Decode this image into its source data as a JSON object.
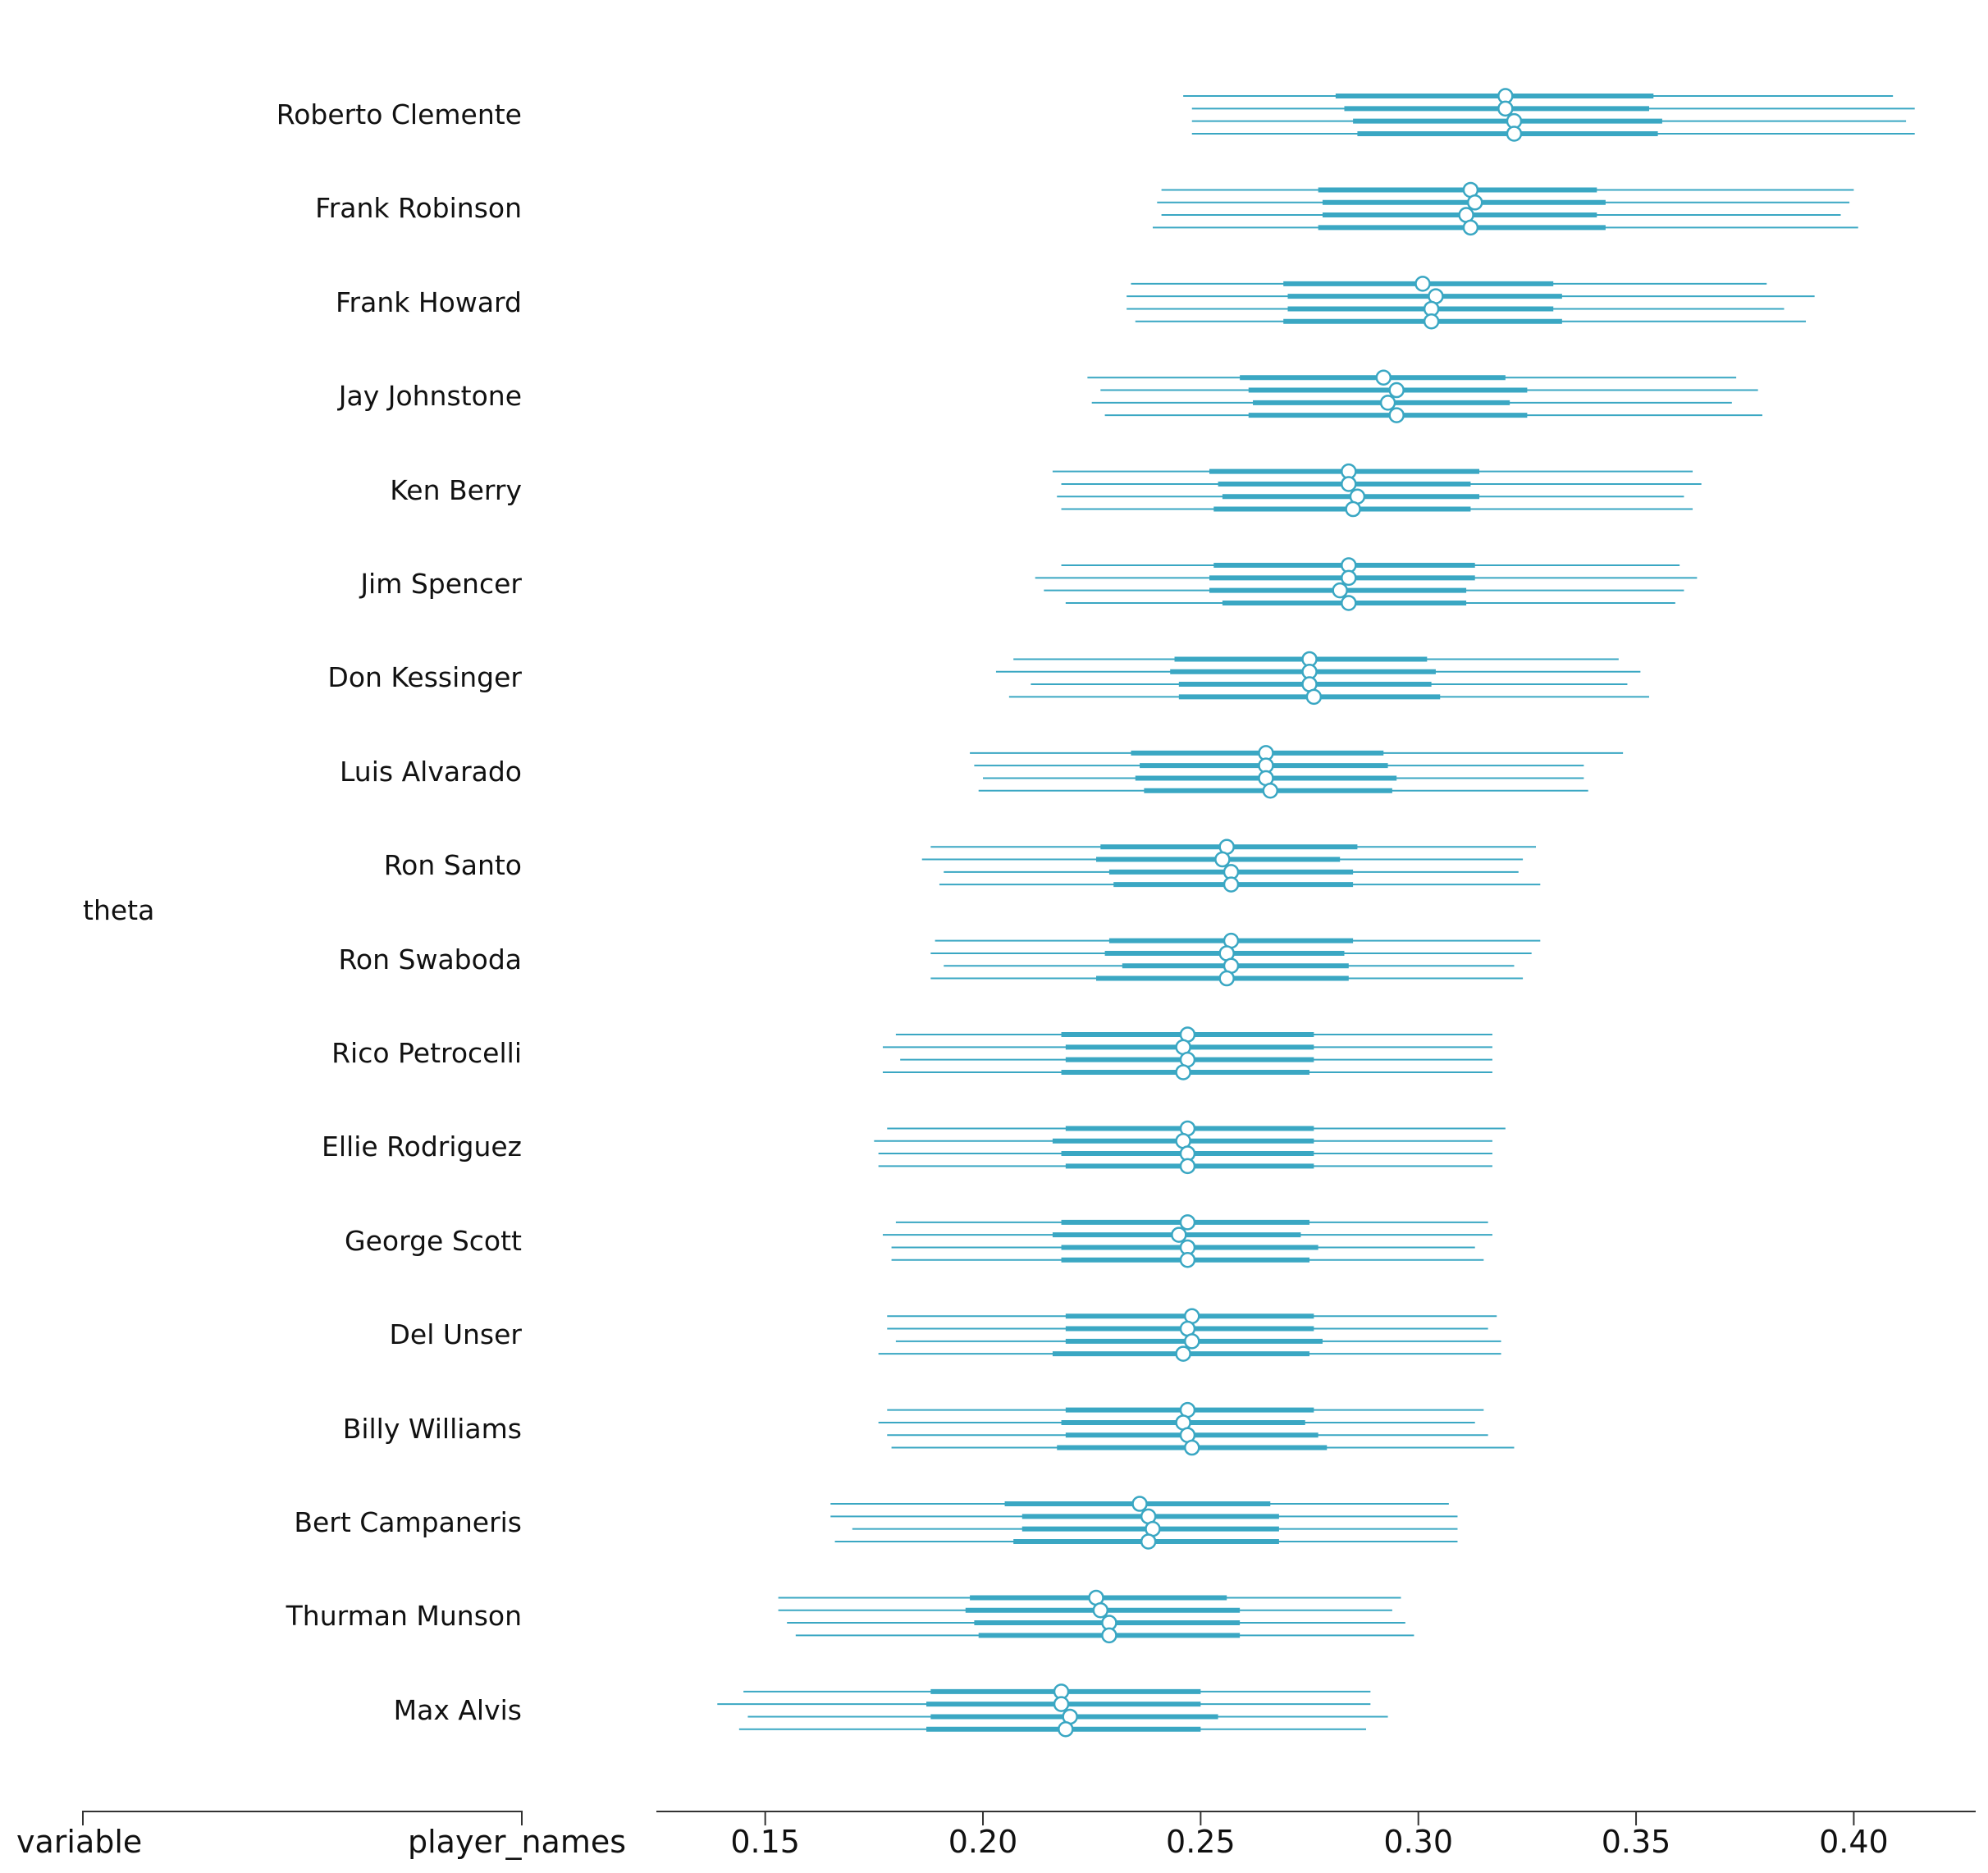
{
  "chart_data": {
    "type": "forest",
    "xlim": [
      0.125,
      0.428
    ],
    "xticks": [
      0.15,
      0.2,
      0.25,
      0.3,
      0.35,
      0.4
    ],
    "xtick_labels": [
      "0.15",
      "0.20",
      "0.25",
      "0.30",
      "0.35",
      "0.40"
    ],
    "left_axis": {
      "labels": [
        "variable",
        "player_names"
      ]
    },
    "variable_name": "theta",
    "colors": {
      "line": "#3aa7c3",
      "marker_fill": "#ffffff",
      "axis": "#333333"
    },
    "rows": [
      {
        "name": "Roberto Clemente",
        "chains": [
          {
            "hdi": [
              0.246,
              0.409
            ],
            "iqr": [
              0.281,
              0.354
            ],
            "center": 0.32
          },
          {
            "hdi": [
              0.248,
              0.414
            ],
            "iqr": [
              0.283,
              0.353
            ],
            "center": 0.32
          },
          {
            "hdi": [
              0.248,
              0.412
            ],
            "iqr": [
              0.285,
              0.356
            ],
            "center": 0.322
          },
          {
            "hdi": [
              0.248,
              0.414
            ],
            "iqr": [
              0.286,
              0.355
            ],
            "center": 0.322
          }
        ]
      },
      {
        "name": "Frank Robinson",
        "chains": [
          {
            "hdi": [
              0.241,
              0.4
            ],
            "iqr": [
              0.277,
              0.341
            ],
            "center": 0.312
          },
          {
            "hdi": [
              0.24,
              0.399
            ],
            "iqr": [
              0.278,
              0.343
            ],
            "center": 0.313
          },
          {
            "hdi": [
              0.241,
              0.397
            ],
            "iqr": [
              0.278,
              0.341
            ],
            "center": 0.311
          },
          {
            "hdi": [
              0.239,
              0.401
            ],
            "iqr": [
              0.277,
              0.343
            ],
            "center": 0.312
          }
        ]
      },
      {
        "name": "Frank Howard",
        "chains": [
          {
            "hdi": [
              0.234,
              0.38
            ],
            "iqr": [
              0.269,
              0.331
            ],
            "center": 0.301
          },
          {
            "hdi": [
              0.233,
              0.391
            ],
            "iqr": [
              0.27,
              0.333
            ],
            "center": 0.304
          },
          {
            "hdi": [
              0.233,
              0.384
            ],
            "iqr": [
              0.27,
              0.331
            ],
            "center": 0.303
          },
          {
            "hdi": [
              0.235,
              0.389
            ],
            "iqr": [
              0.269,
              0.333
            ],
            "center": 0.303
          }
        ]
      },
      {
        "name": "Jay Johnstone",
        "chains": [
          {
            "hdi": [
              0.224,
              0.373
            ],
            "iqr": [
              0.259,
              0.32
            ],
            "center": 0.292
          },
          {
            "hdi": [
              0.227,
              0.378
            ],
            "iqr": [
              0.261,
              0.325
            ],
            "center": 0.295
          },
          {
            "hdi": [
              0.225,
              0.372
            ],
            "iqr": [
              0.262,
              0.321
            ],
            "center": 0.293
          },
          {
            "hdi": [
              0.228,
              0.379
            ],
            "iqr": [
              0.261,
              0.325
            ],
            "center": 0.295
          }
        ]
      },
      {
        "name": "Ken Berry",
        "chains": [
          {
            "hdi": [
              0.216,
              0.363
            ],
            "iqr": [
              0.252,
              0.314
            ],
            "center": 0.284
          },
          {
            "hdi": [
              0.218,
              0.365
            ],
            "iqr": [
              0.254,
              0.312
            ],
            "center": 0.284
          },
          {
            "hdi": [
              0.217,
              0.361
            ],
            "iqr": [
              0.255,
              0.314
            ],
            "center": 0.286
          },
          {
            "hdi": [
              0.218,
              0.363
            ],
            "iqr": [
              0.253,
              0.312
            ],
            "center": 0.285
          }
        ]
      },
      {
        "name": "Jim Spencer",
        "chains": [
          {
            "hdi": [
              0.218,
              0.36
            ],
            "iqr": [
              0.253,
              0.313
            ],
            "center": 0.284
          },
          {
            "hdi": [
              0.212,
              0.364
            ],
            "iqr": [
              0.252,
              0.313
            ],
            "center": 0.284
          },
          {
            "hdi": [
              0.214,
              0.361
            ],
            "iqr": [
              0.252,
              0.311
            ],
            "center": 0.282
          },
          {
            "hdi": [
              0.219,
              0.359
            ],
            "iqr": [
              0.255,
              0.311
            ],
            "center": 0.284
          }
        ]
      },
      {
        "name": "Don Kessinger",
        "chains": [
          {
            "hdi": [
              0.207,
              0.346
            ],
            "iqr": [
              0.244,
              0.302
            ],
            "center": 0.275
          },
          {
            "hdi": [
              0.203,
              0.351
            ],
            "iqr": [
              0.243,
              0.304
            ],
            "center": 0.275
          },
          {
            "hdi": [
              0.211,
              0.348
            ],
            "iqr": [
              0.245,
              0.303
            ],
            "center": 0.275
          },
          {
            "hdi": [
              0.206,
              0.353
            ],
            "iqr": [
              0.245,
              0.305
            ],
            "center": 0.276
          }
        ]
      },
      {
        "name": "Luis Alvarado",
        "chains": [
          {
            "hdi": [
              0.197,
              0.347
            ],
            "iqr": [
              0.234,
              0.292
            ],
            "center": 0.265
          },
          {
            "hdi": [
              0.198,
              0.338
            ],
            "iqr": [
              0.236,
              0.293
            ],
            "center": 0.265
          },
          {
            "hdi": [
              0.2,
              0.338
            ],
            "iqr": [
              0.235,
              0.295
            ],
            "center": 0.265
          },
          {
            "hdi": [
              0.199,
              0.339
            ],
            "iqr": [
              0.237,
              0.294
            ],
            "center": 0.266
          }
        ]
      },
      {
        "name": "Ron Santo",
        "chains": [
          {
            "hdi": [
              0.188,
              0.327
            ],
            "iqr": [
              0.227,
              0.286
            ],
            "center": 0.256
          },
          {
            "hdi": [
              0.186,
              0.324
            ],
            "iqr": [
              0.226,
              0.282
            ],
            "center": 0.255
          },
          {
            "hdi": [
              0.191,
              0.323
            ],
            "iqr": [
              0.229,
              0.285
            ],
            "center": 0.257
          },
          {
            "hdi": [
              0.19,
              0.328
            ],
            "iqr": [
              0.23,
              0.285
            ],
            "center": 0.257
          }
        ]
      },
      {
        "name": "Ron Swaboda",
        "chains": [
          {
            "hdi": [
              0.189,
              0.328
            ],
            "iqr": [
              0.229,
              0.285
            ],
            "center": 0.257
          },
          {
            "hdi": [
              0.188,
              0.326
            ],
            "iqr": [
              0.228,
              0.283
            ],
            "center": 0.256
          },
          {
            "hdi": [
              0.191,
              0.322
            ],
            "iqr": [
              0.232,
              0.284
            ],
            "center": 0.257
          },
          {
            "hdi": [
              0.188,
              0.324
            ],
            "iqr": [
              0.226,
              0.284
            ],
            "center": 0.256
          }
        ]
      },
      {
        "name": "Rico Petrocelli",
        "chains": [
          {
            "hdi": [
              0.18,
              0.317
            ],
            "iqr": [
              0.218,
              0.276
            ],
            "center": 0.247
          },
          {
            "hdi": [
              0.177,
              0.317
            ],
            "iqr": [
              0.219,
              0.276
            ],
            "center": 0.246
          },
          {
            "hdi": [
              0.181,
              0.317
            ],
            "iqr": [
              0.219,
              0.276
            ],
            "center": 0.247
          },
          {
            "hdi": [
              0.177,
              0.317
            ],
            "iqr": [
              0.218,
              0.275
            ],
            "center": 0.246
          }
        ]
      },
      {
        "name": "Ellie Rodriguez",
        "chains": [
          {
            "hdi": [
              0.178,
              0.32
            ],
            "iqr": [
              0.219,
              0.276
            ],
            "center": 0.247
          },
          {
            "hdi": [
              0.175,
              0.317
            ],
            "iqr": [
              0.216,
              0.276
            ],
            "center": 0.246
          },
          {
            "hdi": [
              0.176,
              0.317
            ],
            "iqr": [
              0.218,
              0.276
            ],
            "center": 0.247
          },
          {
            "hdi": [
              0.176,
              0.317
            ],
            "iqr": [
              0.219,
              0.276
            ],
            "center": 0.247
          }
        ]
      },
      {
        "name": "George Scott",
        "chains": [
          {
            "hdi": [
              0.18,
              0.316
            ],
            "iqr": [
              0.218,
              0.275
            ],
            "center": 0.247
          },
          {
            "hdi": [
              0.177,
              0.317
            ],
            "iqr": [
              0.216,
              0.273
            ],
            "center": 0.245
          },
          {
            "hdi": [
              0.179,
              0.313
            ],
            "iqr": [
              0.218,
              0.277
            ],
            "center": 0.247
          },
          {
            "hdi": [
              0.179,
              0.315
            ],
            "iqr": [
              0.218,
              0.275
            ],
            "center": 0.247
          }
        ]
      },
      {
        "name": "Del Unser",
        "chains": [
          {
            "hdi": [
              0.178,
              0.318
            ],
            "iqr": [
              0.219,
              0.276
            ],
            "center": 0.248
          },
          {
            "hdi": [
              0.178,
              0.316
            ],
            "iqr": [
              0.219,
              0.276
            ],
            "center": 0.247
          },
          {
            "hdi": [
              0.18,
              0.319
            ],
            "iqr": [
              0.219,
              0.278
            ],
            "center": 0.248
          },
          {
            "hdi": [
              0.176,
              0.319
            ],
            "iqr": [
              0.216,
              0.275
            ],
            "center": 0.246
          }
        ]
      },
      {
        "name": "Billy Williams",
        "chains": [
          {
            "hdi": [
              0.178,
              0.315
            ],
            "iqr": [
              0.219,
              0.276
            ],
            "center": 0.247
          },
          {
            "hdi": [
              0.176,
              0.313
            ],
            "iqr": [
              0.218,
              0.274
            ],
            "center": 0.246
          },
          {
            "hdi": [
              0.178,
              0.316
            ],
            "iqr": [
              0.219,
              0.277
            ],
            "center": 0.247
          },
          {
            "hdi": [
              0.179,
              0.322
            ],
            "iqr": [
              0.217,
              0.279
            ],
            "center": 0.248
          }
        ]
      },
      {
        "name": "Bert Campaneris",
        "chains": [
          {
            "hdi": [
              0.165,
              0.307
            ],
            "iqr": [
              0.205,
              0.266
            ],
            "center": 0.236
          },
          {
            "hdi": [
              0.165,
              0.309
            ],
            "iqr": [
              0.209,
              0.268
            ],
            "center": 0.238
          },
          {
            "hdi": [
              0.17,
              0.309
            ],
            "iqr": [
              0.209,
              0.268
            ],
            "center": 0.239
          },
          {
            "hdi": [
              0.166,
              0.309
            ],
            "iqr": [
              0.207,
              0.268
            ],
            "center": 0.238
          }
        ]
      },
      {
        "name": "Thurman Munson",
        "chains": [
          {
            "hdi": [
              0.153,
              0.296
            ],
            "iqr": [
              0.197,
              0.256
            ],
            "center": 0.226
          },
          {
            "hdi": [
              0.153,
              0.294
            ],
            "iqr": [
              0.196,
              0.259
            ],
            "center": 0.227
          },
          {
            "hdi": [
              0.155,
              0.297
            ],
            "iqr": [
              0.198,
              0.259
            ],
            "center": 0.229
          },
          {
            "hdi": [
              0.157,
              0.299
            ],
            "iqr": [
              0.199,
              0.259
            ],
            "center": 0.229
          }
        ]
      },
      {
        "name": "Max Alvis",
        "chains": [
          {
            "hdi": [
              0.145,
              0.289
            ],
            "iqr": [
              0.188,
              0.25
            ],
            "center": 0.218
          },
          {
            "hdi": [
              0.139,
              0.289
            ],
            "iqr": [
              0.187,
              0.25
            ],
            "center": 0.218
          },
          {
            "hdi": [
              0.146,
              0.293
            ],
            "iqr": [
              0.188,
              0.254
            ],
            "center": 0.22
          },
          {
            "hdi": [
              0.144,
              0.288
            ],
            "iqr": [
              0.187,
              0.25
            ],
            "center": 0.219
          }
        ]
      }
    ]
  }
}
